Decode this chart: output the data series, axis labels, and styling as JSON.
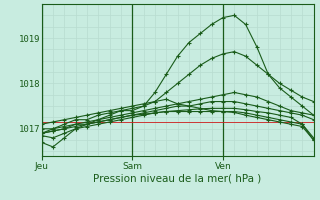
{
  "title": "",
  "xlabel": "Pression niveau de la mer( hPa )",
  "bg_color": "#c8ece0",
  "plot_bg_color": "#c8ece0",
  "grid_color_major": "#a0c8b8",
  "grid_color_minor": "#b8dcd0",
  "line_color": "#1a5c1a",
  "red_line_color": "#cc2222",
  "ylim": [
    1016.4,
    1019.75
  ],
  "yticks": [
    1017,
    1018,
    1019
  ],
  "day_labels": [
    "Jeu",
    "Sam",
    "Ven"
  ],
  "day_positions": [
    0.0,
    0.333,
    0.667
  ],
  "n_points": 25,
  "lines": [
    [
      1016.7,
      1016.6,
      1016.8,
      1017.0,
      1017.1,
      1017.2,
      1017.3,
      1017.4,
      1017.4,
      1017.5,
      1017.8,
      1018.2,
      1018.6,
      1018.9,
      1019.1,
      1019.3,
      1019.45,
      1019.5,
      1019.3,
      1018.8,
      1018.2,
      1017.9,
      1017.7,
      1017.5,
      1017.3
    ],
    [
      1016.9,
      1017.0,
      1017.1,
      1017.2,
      1017.2,
      1017.3,
      1017.35,
      1017.4,
      1017.45,
      1017.5,
      1017.6,
      1017.8,
      1018.0,
      1018.2,
      1018.4,
      1018.55,
      1018.65,
      1018.7,
      1018.6,
      1018.4,
      1018.2,
      1018.0,
      1017.85,
      1017.7,
      1017.6
    ],
    [
      1016.9,
      1016.95,
      1017.0,
      1017.1,
      1017.15,
      1017.2,
      1017.25,
      1017.3,
      1017.35,
      1017.4,
      1017.45,
      1017.5,
      1017.55,
      1017.6,
      1017.65,
      1017.7,
      1017.75,
      1017.8,
      1017.75,
      1017.7,
      1017.6,
      1017.5,
      1017.4,
      1017.35,
      1017.3
    ],
    [
      1017.0,
      1017.0,
      1017.05,
      1017.1,
      1017.1,
      1017.15,
      1017.2,
      1017.25,
      1017.3,
      1017.35,
      1017.4,
      1017.45,
      1017.5,
      1017.5,
      1017.55,
      1017.6,
      1017.6,
      1017.6,
      1017.55,
      1017.5,
      1017.45,
      1017.4,
      1017.35,
      1017.3,
      1017.2
    ],
    [
      1016.85,
      1016.8,
      1016.9,
      1017.0,
      1017.05,
      1017.1,
      1017.15,
      1017.2,
      1017.25,
      1017.3,
      1017.35,
      1017.38,
      1017.4,
      1017.42,
      1017.44,
      1017.45,
      1017.45,
      1017.45,
      1017.42,
      1017.38,
      1017.35,
      1017.3,
      1017.25,
      1017.1,
      1016.75
    ],
    [
      1017.1,
      1017.15,
      1017.2,
      1017.25,
      1017.3,
      1017.35,
      1017.4,
      1017.45,
      1017.5,
      1017.55,
      1017.6,
      1017.65,
      1017.55,
      1017.5,
      1017.45,
      1017.4,
      1017.38,
      1017.36,
      1017.3,
      1017.25,
      1017.2,
      1017.15,
      1017.1,
      1017.05,
      1016.75
    ]
  ],
  "control_line": [
    1016.9,
    1016.95,
    1017.0,
    1017.05,
    1017.1,
    1017.15,
    1017.2,
    1017.25,
    1017.3,
    1017.32,
    1017.35,
    1017.38,
    1017.38,
    1017.38,
    1017.38,
    1017.38,
    1017.38,
    1017.38,
    1017.35,
    1017.3,
    1017.25,
    1017.2,
    1017.15,
    1017.1,
    1016.8
  ]
}
